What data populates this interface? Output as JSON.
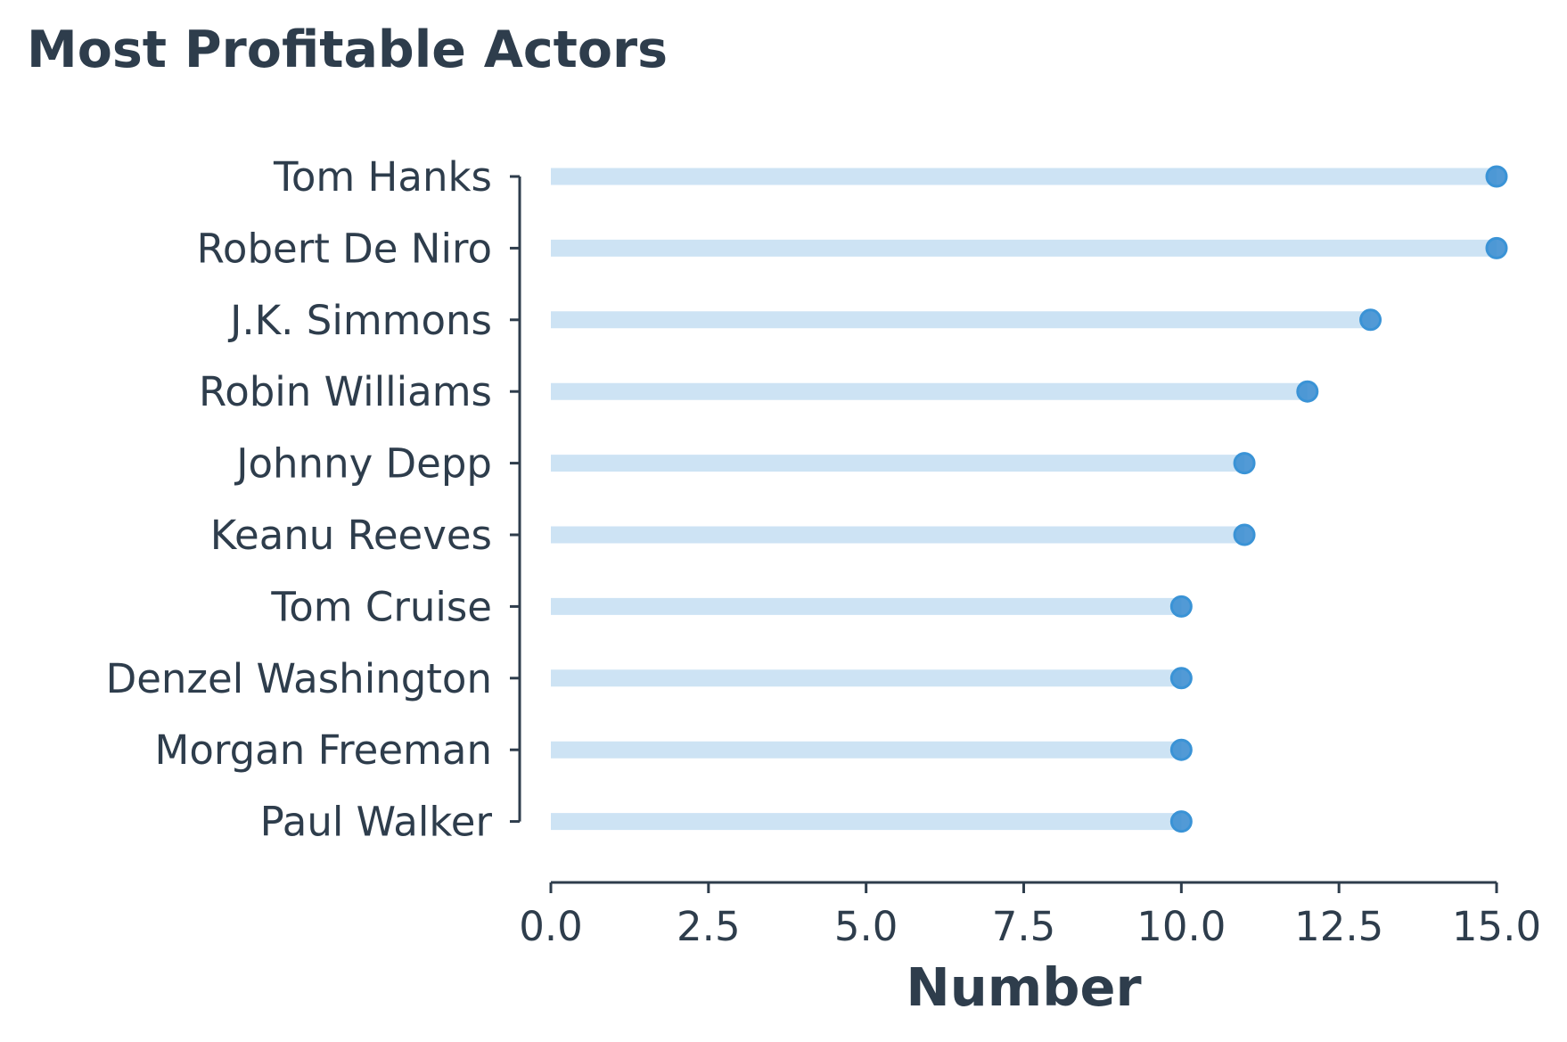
{
  "chart_data": {
    "type": "bar",
    "style": "lollipop",
    "orientation": "horizontal",
    "title": "Most Profitable Actors",
    "xlabel": "Number",
    "ylabel": "",
    "categories": [
      "Tom Hanks",
      "Robert De Niro",
      "J.K. Simmons",
      "Robin Williams",
      "Johnny Depp",
      "Keanu Reeves",
      "Tom Cruise",
      "Denzel Washington",
      "Morgan Freeman",
      "Paul Walker"
    ],
    "values": [
      15,
      15,
      13,
      12,
      11,
      11,
      10,
      10,
      10,
      10
    ],
    "xlim": [
      0,
      15
    ],
    "xticks": [
      "0.0",
      "2.5",
      "5.0",
      "7.5",
      "10.0",
      "12.5",
      "15.0"
    ],
    "grid": false,
    "legend": "none",
    "colors": {
      "text": "#2e3d4c",
      "stem": "#cde3f4",
      "dot_fill": "#3f8fd2",
      "dot_edge": "#3a93d6",
      "axis": "#2e3d4c"
    }
  }
}
